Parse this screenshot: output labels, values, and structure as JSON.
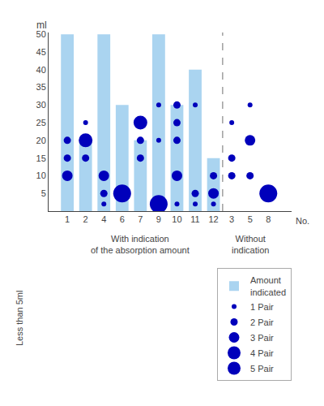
{
  "chart_data": {
    "type": "bar",
    "ylabel": "ml",
    "xlabel": "No.",
    "annotations": [
      "Less than 5ml",
      "With indication\nof the absorption amount",
      "Without\nindication"
    ],
    "categories": [
      "1",
      "2",
      "4",
      "6",
      "7",
      "9",
      "10",
      "11",
      "12",
      "3",
      "5",
      "8"
    ],
    "ylim": [
      0,
      50.5
    ],
    "yticks": [
      5,
      10,
      15,
      20,
      25,
      30,
      35,
      40,
      45,
      50
    ],
    "grid": false,
    "series": [
      {
        "name": "Amount\nindicated",
        "type": "bar",
        "color": "#aad4f0",
        "x": [
          "1",
          "2",
          "4",
          "6",
          "7",
          "9",
          "10",
          "11",
          "12",
          "3",
          "5",
          "8"
        ],
        "values": [
          50,
          20,
          50,
          30,
          20,
          50,
          30,
          40,
          15,
          null,
          null,
          null
        ]
      },
      {
        "name": "1 Pair",
        "type": "scatter",
        "color": "#0000bb",
        "x": [
          "2",
          "4",
          "9",
          "9",
          "10",
          "11",
          "11",
          "12",
          "3",
          "5"
        ],
        "values": [
          25,
          2,
          30,
          20,
          2,
          30,
          2,
          2,
          25,
          30
        ]
      },
      {
        "name": "2 Pair",
        "type": "scatter",
        "color": "#0000bb",
        "x": [
          "1",
          "1",
          "2",
          "4",
          "7",
          "7",
          "10",
          "10",
          "10",
          "11",
          "12",
          "3",
          "3",
          "5"
        ],
        "values": [
          20,
          15,
          15,
          5,
          20,
          15,
          30,
          25,
          20,
          5,
          10,
          15,
          10,
          10
        ]
      },
      {
        "name": "3 Pair",
        "type": "scatter",
        "color": "#0000bb",
        "x": [
          "1",
          "4",
          "10",
          "12",
          "5"
        ],
        "values": [
          10,
          10,
          10,
          5,
          20
        ]
      },
      {
        "name": "4 Pair",
        "type": "scatter",
        "color": "#0000bb",
        "x": [
          "2",
          "7"
        ],
        "values": [
          20,
          25
        ]
      },
      {
        "name": "5 Pair",
        "type": "scatter",
        "color": "#0000bb",
        "x": [
          "6",
          "9",
          "8"
        ],
        "values": [
          5,
          2,
          5
        ]
      }
    ]
  }
}
